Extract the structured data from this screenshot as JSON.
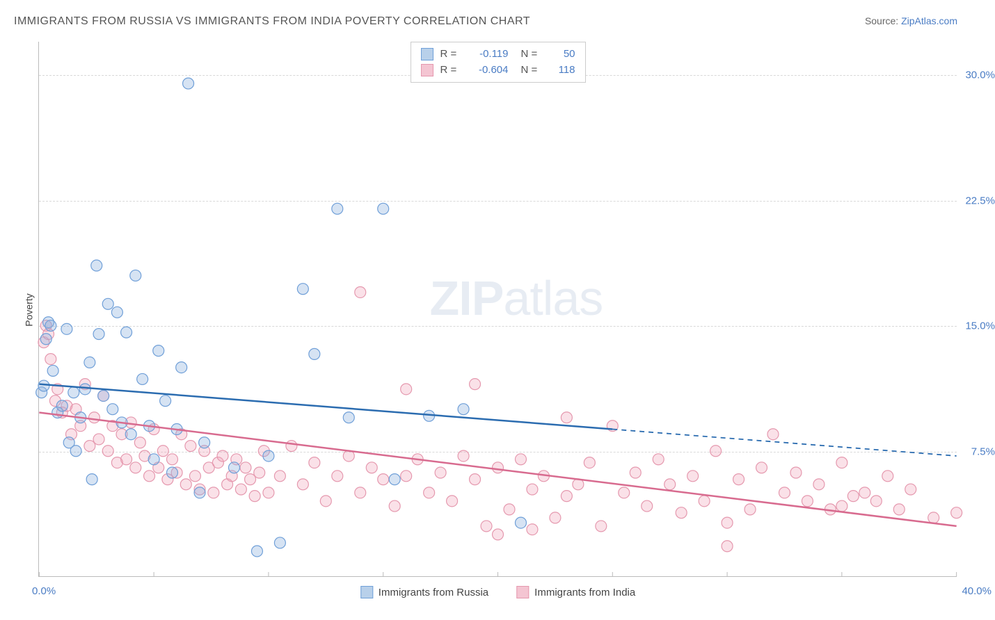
{
  "title": "IMMIGRANTS FROM RUSSIA VS IMMIGRANTS FROM INDIA POVERTY CORRELATION CHART",
  "source_label": "Source: ",
  "source_name": "ZipAtlas.com",
  "ylabel": "Poverty",
  "watermark_bold": "ZIP",
  "watermark_rest": "atlas",
  "chart": {
    "type": "scatter",
    "background_color": "#ffffff",
    "grid_color": "#d8d8d8",
    "axis_color": "#bbbbbb",
    "tick_label_color": "#4a7cc4",
    "xlim": [
      0,
      40
    ],
    "ylim": [
      0,
      32
    ],
    "yticks": [
      7.5,
      15.0,
      22.5,
      30.0
    ],
    "ytick_labels": [
      "7.5%",
      "15.0%",
      "22.5%",
      "30.0%"
    ],
    "xtick_left": "0.0%",
    "xtick_right": "40.0%",
    "xtick_positions": [
      0,
      5,
      10,
      15,
      20,
      25,
      30,
      35,
      40
    ],
    "marker_radius": 8,
    "marker_stroke_width": 1.2,
    "line_width": 2.5,
    "series": [
      {
        "name": "Immigrants from Russia",
        "fill_color": "rgba(138,176,222,0.35)",
        "stroke_color": "#6f9fd8",
        "line_color": "#2b6cb0",
        "swatch_fill": "#b8d0ea",
        "swatch_border": "#6f9fd8",
        "R": "-0.119",
        "N": "50",
        "trend": {
          "x1": 0,
          "y1": 11.5,
          "x2": 25,
          "y2": 8.8,
          "x2_ext": 40,
          "y2_ext": 7.2
        },
        "points": [
          [
            0.1,
            11.0
          ],
          [
            0.2,
            11.4
          ],
          [
            0.3,
            14.2
          ],
          [
            0.4,
            15.2
          ],
          [
            0.5,
            15.0
          ],
          [
            0.6,
            12.3
          ],
          [
            0.8,
            9.8
          ],
          [
            1.0,
            10.2
          ],
          [
            1.2,
            14.8
          ],
          [
            1.3,
            8.0
          ],
          [
            1.5,
            11.0
          ],
          [
            1.6,
            7.5
          ],
          [
            1.8,
            9.5
          ],
          [
            2.0,
            11.2
          ],
          [
            2.2,
            12.8
          ],
          [
            2.3,
            5.8
          ],
          [
            2.5,
            18.6
          ],
          [
            2.6,
            14.5
          ],
          [
            2.8,
            10.8
          ],
          [
            3.0,
            16.3
          ],
          [
            3.2,
            10.0
          ],
          [
            3.4,
            15.8
          ],
          [
            3.6,
            9.2
          ],
          [
            3.8,
            14.6
          ],
          [
            4.0,
            8.5
          ],
          [
            4.2,
            18.0
          ],
          [
            4.5,
            11.8
          ],
          [
            4.8,
            9.0
          ],
          [
            5.0,
            7.0
          ],
          [
            5.2,
            13.5
          ],
          [
            5.5,
            10.5
          ],
          [
            5.8,
            6.2
          ],
          [
            6.0,
            8.8
          ],
          [
            6.2,
            12.5
          ],
          [
            6.5,
            29.5
          ],
          [
            7.0,
            5.0
          ],
          [
            7.2,
            8.0
          ],
          [
            8.5,
            6.5
          ],
          [
            9.5,
            1.5
          ],
          [
            10.0,
            7.2
          ],
          [
            10.5,
            2.0
          ],
          [
            11.5,
            17.2
          ],
          [
            12.0,
            13.3
          ],
          [
            13.0,
            22.0
          ],
          [
            13.5,
            9.5
          ],
          [
            15.0,
            22.0
          ],
          [
            15.5,
            5.8
          ],
          [
            17.0,
            9.6
          ],
          [
            18.5,
            10.0
          ],
          [
            21.0,
            3.2
          ]
        ]
      },
      {
        "name": "Immigrants from India",
        "fill_color": "rgba(240,170,190,0.35)",
        "stroke_color": "#e598ae",
        "line_color": "#d86b8f",
        "swatch_fill": "#f4c5d2",
        "swatch_border": "#e598ae",
        "R": "-0.604",
        "N": "118",
        "trend": {
          "x1": 0,
          "y1": 9.8,
          "x2": 40,
          "y2": 3.0,
          "x2_ext": 40,
          "y2_ext": 3.0
        },
        "points": [
          [
            0.2,
            14.0
          ],
          [
            0.3,
            15.0
          ],
          [
            0.4,
            14.5
          ],
          [
            0.5,
            13.0
          ],
          [
            0.7,
            10.5
          ],
          [
            0.8,
            11.2
          ],
          [
            1.0,
            9.8
          ],
          [
            1.2,
            10.2
          ],
          [
            1.4,
            8.5
          ],
          [
            1.6,
            10.0
          ],
          [
            1.8,
            9.0
          ],
          [
            2.0,
            11.5
          ],
          [
            2.2,
            7.8
          ],
          [
            2.4,
            9.5
          ],
          [
            2.6,
            8.2
          ],
          [
            2.8,
            10.8
          ],
          [
            3.0,
            7.5
          ],
          [
            3.2,
            9.0
          ],
          [
            3.4,
            6.8
          ],
          [
            3.6,
            8.5
          ],
          [
            3.8,
            7.0
          ],
          [
            4.0,
            9.2
          ],
          [
            4.2,
            6.5
          ],
          [
            4.4,
            8.0
          ],
          [
            4.6,
            7.2
          ],
          [
            4.8,
            6.0
          ],
          [
            5.0,
            8.8
          ],
          [
            5.2,
            6.5
          ],
          [
            5.4,
            7.5
          ],
          [
            5.6,
            5.8
          ],
          [
            5.8,
            7.0
          ],
          [
            6.0,
            6.2
          ],
          [
            6.2,
            8.5
          ],
          [
            6.4,
            5.5
          ],
          [
            6.6,
            7.8
          ],
          [
            6.8,
            6.0
          ],
          [
            7.0,
            5.2
          ],
          [
            7.2,
            7.5
          ],
          [
            7.4,
            6.5
          ],
          [
            7.6,
            5.0
          ],
          [
            7.8,
            6.8
          ],
          [
            8.0,
            7.2
          ],
          [
            8.2,
            5.5
          ],
          [
            8.4,
            6.0
          ],
          [
            8.6,
            7.0
          ],
          [
            8.8,
            5.2
          ],
          [
            9.0,
            6.5
          ],
          [
            9.2,
            5.8
          ],
          [
            9.4,
            4.8
          ],
          [
            9.6,
            6.2
          ],
          [
            9.8,
            7.5
          ],
          [
            10.0,
            5.0
          ],
          [
            10.5,
            6.0
          ],
          [
            11.0,
            7.8
          ],
          [
            11.5,
            5.5
          ],
          [
            12.0,
            6.8
          ],
          [
            12.5,
            4.5
          ],
          [
            13.0,
            6.0
          ],
          [
            13.5,
            7.2
          ],
          [
            14.0,
            17.0
          ],
          [
            14.0,
            5.0
          ],
          [
            14.5,
            6.5
          ],
          [
            15.0,
            5.8
          ],
          [
            15.5,
            4.2
          ],
          [
            16.0,
            11.2
          ],
          [
            16.0,
            6.0
          ],
          [
            16.5,
            7.0
          ],
          [
            17.0,
            5.0
          ],
          [
            17.5,
            6.2
          ],
          [
            18.0,
            4.5
          ],
          [
            18.5,
            7.2
          ],
          [
            19.0,
            11.5
          ],
          [
            19.0,
            5.8
          ],
          [
            19.5,
            3.0
          ],
          [
            20.0,
            6.5
          ],
          [
            20.0,
            2.5
          ],
          [
            20.5,
            4.0
          ],
          [
            21.0,
            7.0
          ],
          [
            21.5,
            5.2
          ],
          [
            21.5,
            2.8
          ],
          [
            22.0,
            6.0
          ],
          [
            22.5,
            3.5
          ],
          [
            23.0,
            9.5
          ],
          [
            23.0,
            4.8
          ],
          [
            23.5,
            5.5
          ],
          [
            24.0,
            6.8
          ],
          [
            24.5,
            3.0
          ],
          [
            25.0,
            9.0
          ],
          [
            25.5,
            5.0
          ],
          [
            26.0,
            6.2
          ],
          [
            26.5,
            4.2
          ],
          [
            27.0,
            7.0
          ],
          [
            27.5,
            5.5
          ],
          [
            28.0,
            3.8
          ],
          [
            28.5,
            6.0
          ],
          [
            29.0,
            4.5
          ],
          [
            29.5,
            7.5
          ],
          [
            30.0,
            3.2
          ],
          [
            30.0,
            1.8
          ],
          [
            30.5,
            5.8
          ],
          [
            31.0,
            4.0
          ],
          [
            31.5,
            6.5
          ],
          [
            32.0,
            8.5
          ],
          [
            32.5,
            5.0
          ],
          [
            33.0,
            6.2
          ],
          [
            33.5,
            4.5
          ],
          [
            34.0,
            5.5
          ],
          [
            34.5,
            4.0
          ],
          [
            35.0,
            6.8
          ],
          [
            35.0,
            4.2
          ],
          [
            35.5,
            4.8
          ],
          [
            36.0,
            5.0
          ],
          [
            36.5,
            4.5
          ],
          [
            37.0,
            6.0
          ],
          [
            37.5,
            4.0
          ],
          [
            38.0,
            5.2
          ],
          [
            39.0,
            3.5
          ],
          [
            40.0,
            3.8
          ]
        ]
      }
    ],
    "legend_labels": {
      "R": "R =",
      "N": "N ="
    }
  }
}
